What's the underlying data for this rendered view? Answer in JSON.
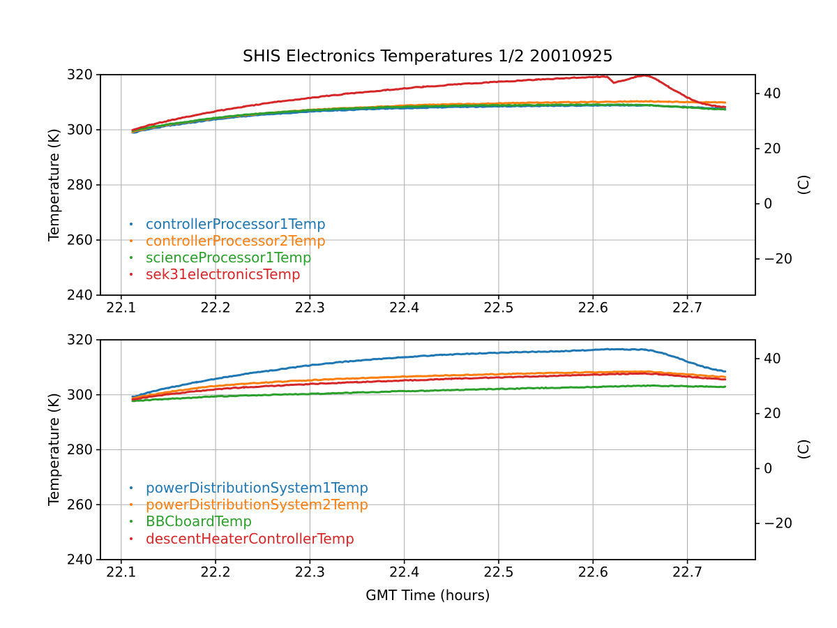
{
  "figure": {
    "title": "SHIS Electronics Temperatures 1/2 20010925",
    "background": "#ffffff",
    "text_color": "#000000"
  },
  "chart_data": [
    {
      "type": "line",
      "title": "SHIS Electronics Temperatures 1/2 20010925",
      "ylabel_left": "Temperature (K)",
      "ylabel_right": "(C)",
      "xlabel": "",
      "xlim": [
        22.078,
        22.772
      ],
      "ylim": [
        240,
        320
      ],
      "xticks": [
        22.1,
        22.2,
        22.3,
        22.4,
        22.5,
        22.6,
        22.7
      ],
      "yticks_left": [
        240,
        260,
        280,
        300,
        320
      ],
      "yticks_right_celsius": [
        -20,
        0,
        20,
        40
      ],
      "grid": true,
      "grid_color": "#b0b0b0",
      "legend_position": "lower-left-inside",
      "series": [
        {
          "name": "controllerProcessor1Temp",
          "color": "#1f77b4",
          "points": [
            [
              22.112,
              298.9
            ],
            [
              22.13,
              300.3
            ],
            [
              22.15,
              301.5
            ],
            [
              22.18,
              302.9
            ],
            [
              22.2,
              303.8
            ],
            [
              22.23,
              304.9
            ],
            [
              22.26,
              305.7
            ],
            [
              22.3,
              306.6
            ],
            [
              22.34,
              307.2
            ],
            [
              22.38,
              307.7
            ],
            [
              22.42,
              308.0
            ],
            [
              22.46,
              308.3
            ],
            [
              22.5,
              308.5
            ],
            [
              22.55,
              308.7
            ],
            [
              22.6,
              308.8
            ],
            [
              22.64,
              308.9
            ],
            [
              22.66,
              308.8
            ],
            [
              22.68,
              308.5
            ],
            [
              22.7,
              308.2
            ],
            [
              22.72,
              307.9
            ],
            [
              22.74,
              307.6
            ]
          ]
        },
        {
          "name": "controllerProcessor2Temp",
          "color": "#ff7f0e",
          "points": [
            [
              22.112,
              299.3
            ],
            [
              22.13,
              300.7
            ],
            [
              22.15,
              301.9
            ],
            [
              22.18,
              303.3
            ],
            [
              22.2,
              304.2
            ],
            [
              22.23,
              305.3
            ],
            [
              22.26,
              306.2
            ],
            [
              22.3,
              307.2
            ],
            [
              22.34,
              307.9
            ],
            [
              22.38,
              308.5
            ],
            [
              22.42,
              309.0
            ],
            [
              22.46,
              309.3
            ],
            [
              22.5,
              309.6
            ],
            [
              22.55,
              309.9
            ],
            [
              22.6,
              310.1
            ],
            [
              22.64,
              310.3
            ],
            [
              22.66,
              310.3
            ],
            [
              22.68,
              310.2
            ],
            [
              22.7,
              310.1
            ],
            [
              22.72,
              310.0
            ],
            [
              22.74,
              309.9
            ]
          ]
        },
        {
          "name": "scienceProcessor1Temp",
          "color": "#2ca02c",
          "points": [
            [
              22.112,
              299.6
            ],
            [
              22.13,
              300.9
            ],
            [
              22.15,
              302.0
            ],
            [
              22.18,
              303.4
            ],
            [
              22.2,
              304.3
            ],
            [
              22.23,
              305.4
            ],
            [
              22.26,
              306.2
            ],
            [
              22.3,
              307.1
            ],
            [
              22.34,
              307.7
            ],
            [
              22.38,
              308.2
            ],
            [
              22.42,
              308.5
            ],
            [
              22.46,
              308.8
            ],
            [
              22.5,
              308.9
            ],
            [
              22.55,
              309.0
            ],
            [
              22.6,
              309.1
            ],
            [
              22.63,
              309.1
            ],
            [
              22.66,
              308.9
            ],
            [
              22.68,
              308.5
            ],
            [
              22.7,
              308.1
            ],
            [
              22.72,
              307.7
            ],
            [
              22.74,
              307.4
            ]
          ]
        },
        {
          "name": "sek31electronicsTemp",
          "color": "#d62728",
          "points": [
            [
              22.112,
              299.9
            ],
            [
              22.13,
              301.7
            ],
            [
              22.15,
              303.3
            ],
            [
              22.18,
              305.4
            ],
            [
              22.2,
              306.7
            ],
            [
              22.23,
              308.4
            ],
            [
              22.26,
              309.9
            ],
            [
              22.3,
              311.6
            ],
            [
              22.34,
              313.1
            ],
            [
              22.38,
              314.4
            ],
            [
              22.42,
              315.6
            ],
            [
              22.46,
              316.6
            ],
            [
              22.5,
              317.4
            ],
            [
              22.54,
              318.2
            ],
            [
              22.58,
              318.9
            ],
            [
              22.605,
              319.2
            ],
            [
              22.615,
              319.3
            ],
            [
              22.622,
              317.1
            ],
            [
              22.632,
              317.9
            ],
            [
              22.645,
              319.2
            ],
            [
              22.655,
              319.8
            ],
            [
              22.66,
              319.4
            ],
            [
              22.67,
              317.7
            ],
            [
              22.68,
              315.6
            ],
            [
              22.69,
              313.6
            ],
            [
              22.7,
              311.7
            ],
            [
              22.71,
              310.2
            ],
            [
              22.72,
              309.2
            ],
            [
              22.73,
              308.6
            ],
            [
              22.74,
              308.2
            ]
          ]
        }
      ]
    },
    {
      "type": "line",
      "title": "",
      "ylabel_left": "Temperature (K)",
      "ylabel_right": "(C)",
      "xlabel": "GMT Time (hours)",
      "xlim": [
        22.078,
        22.772
      ],
      "ylim": [
        240,
        320
      ],
      "xticks": [
        22.1,
        22.2,
        22.3,
        22.4,
        22.5,
        22.6,
        22.7
      ],
      "yticks_left": [
        240,
        260,
        280,
        300,
        320
      ],
      "yticks_right_celsius": [
        -20,
        0,
        20,
        40
      ],
      "grid": true,
      "grid_color": "#b0b0b0",
      "legend_position": "lower-left-inside",
      "series": [
        {
          "name": "powerDistributionSystem1Temp",
          "color": "#1f77b4",
          "points": [
            [
              22.112,
              299.2
            ],
            [
              22.13,
              300.9
            ],
            [
              22.15,
              302.5
            ],
            [
              22.18,
              304.6
            ],
            [
              22.2,
              305.8
            ],
            [
              22.23,
              307.5
            ],
            [
              22.26,
              308.9
            ],
            [
              22.3,
              310.7
            ],
            [
              22.33,
              311.8
            ],
            [
              22.36,
              312.7
            ],
            [
              22.4,
              313.7
            ],
            [
              22.44,
              314.5
            ],
            [
              22.48,
              315.1
            ],
            [
              22.52,
              315.5
            ],
            [
              22.56,
              315.8
            ],
            [
              22.6,
              316.3
            ],
            [
              22.62,
              316.6
            ],
            [
              22.64,
              316.5
            ],
            [
              22.655,
              316.4
            ],
            [
              22.665,
              315.9
            ],
            [
              22.675,
              315.0
            ],
            [
              22.69,
              313.4
            ],
            [
              22.7,
              312.1
            ],
            [
              22.71,
              310.9
            ],
            [
              22.72,
              309.9
            ],
            [
              22.73,
              309.1
            ],
            [
              22.74,
              308.5
            ]
          ]
        },
        {
          "name": "powerDistributionSystem2Temp",
          "color": "#ff7f0e",
          "points": [
            [
              22.112,
              298.7
            ],
            [
              22.13,
              299.9
            ],
            [
              22.15,
              301.0
            ],
            [
              22.18,
              302.4
            ],
            [
              22.2,
              303.2
            ],
            [
              22.23,
              304.0
            ],
            [
              22.26,
              304.6
            ],
            [
              22.3,
              305.3
            ],
            [
              22.35,
              306.0
            ],
            [
              22.4,
              306.6
            ],
            [
              22.45,
              307.1
            ],
            [
              22.5,
              307.5
            ],
            [
              22.55,
              307.9
            ],
            [
              22.6,
              308.2
            ],
            [
              22.64,
              308.5
            ],
            [
              22.66,
              308.4
            ],
            [
              22.68,
              307.9
            ],
            [
              22.7,
              307.4
            ],
            [
              22.72,
              306.9
            ],
            [
              22.74,
              306.5
            ]
          ]
        },
        {
          "name": "BBCboardTemp",
          "color": "#2ca02c",
          "points": [
            [
              22.112,
              297.7
            ],
            [
              22.15,
              298.5
            ],
            [
              22.2,
              299.4
            ],
            [
              22.25,
              299.9
            ],
            [
              22.3,
              300.3
            ],
            [
              22.35,
              300.8
            ],
            [
              22.4,
              301.3
            ],
            [
              22.45,
              301.7
            ],
            [
              22.5,
              302.1
            ],
            [
              22.55,
              302.5
            ],
            [
              22.6,
              302.8
            ],
            [
              22.63,
              303.1
            ],
            [
              22.66,
              303.3
            ],
            [
              22.68,
              303.2
            ],
            [
              22.7,
              303.1
            ],
            [
              22.72,
              303.0
            ],
            [
              22.74,
              302.9
            ]
          ]
        },
        {
          "name": "descentHeaterControllerTemp",
          "color": "#d62728",
          "points": [
            [
              22.112,
              298.3
            ],
            [
              22.13,
              299.3
            ],
            [
              22.15,
              300.2
            ],
            [
              22.18,
              301.3
            ],
            [
              22.2,
              302.0
            ],
            [
              22.23,
              302.7
            ],
            [
              22.26,
              303.2
            ],
            [
              22.3,
              303.9
            ],
            [
              22.35,
              304.6
            ],
            [
              22.4,
              305.2
            ],
            [
              22.45,
              305.8
            ],
            [
              22.5,
              306.3
            ],
            [
              22.55,
              306.8
            ],
            [
              22.6,
              307.3
            ],
            [
              22.63,
              307.6
            ],
            [
              22.655,
              307.7
            ],
            [
              22.67,
              307.5
            ],
            [
              22.69,
              306.9
            ],
            [
              22.71,
              306.3
            ],
            [
              22.73,
              305.8
            ],
            [
              22.74,
              305.6
            ]
          ]
        }
      ]
    }
  ]
}
